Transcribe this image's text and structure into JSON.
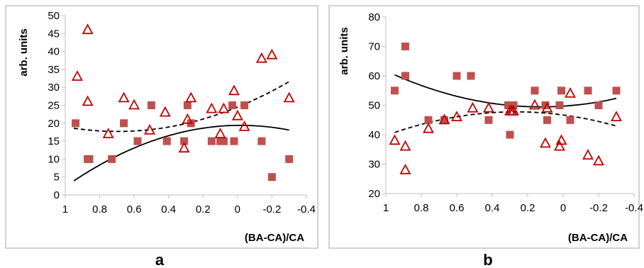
{
  "colors": {
    "square": "#c0504d",
    "triangle": "#c00000",
    "axis": "#bfbfbf",
    "frame": "#a6a6a6",
    "curve": "#000000"
  },
  "chart_data": [
    {
      "type": "scatter",
      "panel_label": "a",
      "xlabel": "(BA-CA)/CA",
      "ylabel": "arb. units",
      "xlim": [
        1,
        -0.4
      ],
      "x_reversed": true,
      "ylim": [
        0,
        50
      ],
      "x_ticks": [
        1,
        0.8,
        0.6,
        0.4,
        0.2,
        0,
        -0.2,
        -0.4
      ],
      "x_tick_labels": [
        "1",
        "0.8",
        "0.6",
        "0.4",
        "0.2",
        "0",
        "-0.2",
        "-0.4"
      ],
      "y_ticks": [
        0,
        5,
        10,
        15,
        20,
        25,
        30,
        35,
        40,
        45,
        50
      ],
      "y_tick_labels": [
        "0",
        "5",
        "10",
        "15",
        "20",
        "25",
        "30",
        "35",
        "40",
        "45",
        "50"
      ],
      "grid": false,
      "series": [
        {
          "marker": "square",
          "fit": "solid",
          "points": [
            [
              0.94,
              20
            ],
            [
              0.87,
              10
            ],
            [
              0.86,
              10
            ],
            [
              0.73,
              10
            ],
            [
              0.66,
              20
            ],
            [
              0.58,
              15
            ],
            [
              0.5,
              25
            ],
            [
              0.41,
              15
            ],
            [
              0.31,
              15
            ],
            [
              0.29,
              25
            ],
            [
              0.27,
              20
            ],
            [
              0.15,
              15
            ],
            [
              0.1,
              15
            ],
            [
              0.08,
              15
            ],
            [
              0.03,
              25
            ],
            [
              0.02,
              15
            ],
            [
              -0.04,
              25
            ],
            [
              -0.14,
              15
            ],
            [
              -0.2,
              5
            ],
            [
              -0.3,
              10
            ]
          ],
          "fit_coeffs": [
            19.4,
            -0.6,
            -16.5
          ]
        },
        {
          "marker": "triangle",
          "fit": "dashed",
          "points": [
            [
              0.93,
              33
            ],
            [
              0.87,
              26
            ],
            [
              0.87,
              46
            ],
            [
              0.75,
              17
            ],
            [
              0.66,
              27
            ],
            [
              0.6,
              25
            ],
            [
              0.51,
              18
            ],
            [
              0.42,
              23
            ],
            [
              0.31,
              13
            ],
            [
              0.29,
              21
            ],
            [
              0.27,
              27
            ],
            [
              0.15,
              24
            ],
            [
              0.1,
              17
            ],
            [
              0.08,
              24
            ],
            [
              0.02,
              29
            ],
            [
              0,
              22
            ],
            [
              -0.04,
              19
            ],
            [
              -0.14,
              38
            ],
            [
              -0.2,
              39
            ],
            [
              -0.3,
              27
            ]
          ],
          "fit_coeffs": [
            24.5,
            -19.5,
            14
          ]
        }
      ]
    },
    {
      "type": "scatter",
      "panel_label": "b",
      "xlabel": "(BA-CA)/CA",
      "ylabel": "arb. units",
      "xlim": [
        1,
        -0.4
      ],
      "x_reversed": true,
      "ylim": [
        20,
        80
      ],
      "x_ticks": [
        1,
        0.8,
        0.6,
        0.4,
        0.2,
        0,
        -0.2,
        -0.4
      ],
      "x_tick_labels": [
        "1",
        "0.8",
        "0.6",
        "0.4",
        "0.2",
        "0",
        "-0.2",
        "-0.4"
      ],
      "y_ticks": [
        20,
        30,
        40,
        50,
        60,
        70,
        80
      ],
      "y_tick_labels": [
        "20",
        "30",
        "40",
        "50",
        "60",
        "70",
        "80"
      ],
      "grid": false,
      "series": [
        {
          "marker": "square",
          "fit": "solid",
          "points": [
            [
              0.95,
              55
            ],
            [
              0.89,
              70
            ],
            [
              0.89,
              60
            ],
            [
              0.76,
              45
            ],
            [
              0.67,
              45
            ],
            [
              0.6,
              60
            ],
            [
              0.52,
              60
            ],
            [
              0.42,
              45
            ],
            [
              0.31,
              50
            ],
            [
              0.3,
              40
            ],
            [
              0.29,
              50
            ],
            [
              0.28,
              50
            ],
            [
              0.16,
              55
            ],
            [
              0.1,
              50
            ],
            [
              0.09,
              45
            ],
            [
              0.02,
              50
            ],
            [
              0.01,
              55
            ],
            [
              -0.04,
              45
            ],
            [
              -0.14,
              55
            ],
            [
              -0.2,
              50
            ],
            [
              -0.3,
              55
            ]
          ],
          "fit_coeffs": [
            49.7,
            -4,
            16
          ]
        },
        {
          "marker": "triangle",
          "fit": "dashed",
          "points": [
            [
              0.95,
              38
            ],
            [
              0.89,
              36
            ],
            [
              0.89,
              28
            ],
            [
              0.76,
              42
            ],
            [
              0.67,
              45
            ],
            [
              0.6,
              46
            ],
            [
              0.51,
              49
            ],
            [
              0.42,
              49
            ],
            [
              0.3,
              48
            ],
            [
              0.29,
              48
            ],
            [
              0.28,
              48
            ],
            [
              0.16,
              50
            ],
            [
              0.1,
              37
            ],
            [
              0.09,
              49
            ],
            [
              0.02,
              36
            ],
            [
              0.01,
              38
            ],
            [
              -0.04,
              54
            ],
            [
              -0.14,
              33
            ],
            [
              -0.2,
              31
            ],
            [
              -0.3,
              46
            ]
          ],
          "fit_coeffs": [
            46.7,
            8,
            -15
          ]
        }
      ]
    }
  ]
}
